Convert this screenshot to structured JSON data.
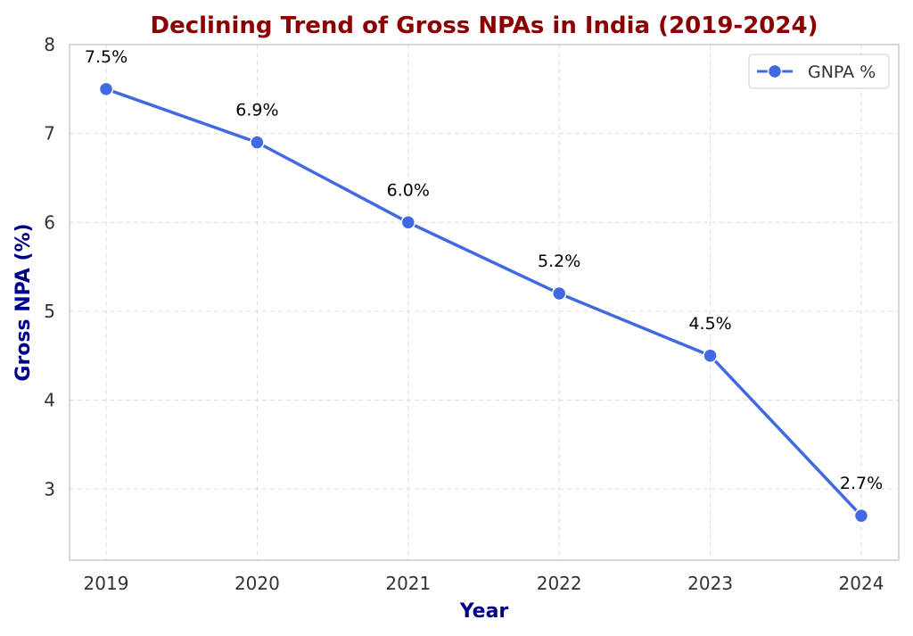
{
  "chart_data": {
    "type": "line",
    "title": "Declining Trend of Gross NPAs in India (2019-2024)",
    "xlabel": "Year",
    "ylabel": "Gross NPA (%)",
    "categories": [
      "2019",
      "2020",
      "2021",
      "2022",
      "2023",
      "2024"
    ],
    "series": [
      {
        "name": "GNPA %",
        "values": [
          7.5,
          6.9,
          6.0,
          5.2,
          4.5,
          2.7
        ],
        "labels": [
          "7.5%",
          "6.9%",
          "6.0%",
          "5.2%",
          "4.5%",
          "2.7%"
        ],
        "color": "#4169e1"
      }
    ],
    "yticks": [
      "3",
      "4",
      "5",
      "6",
      "7",
      "8"
    ],
    "ylim": [
      2.2,
      8.0
    ],
    "grid": true,
    "grid_style": "dashed",
    "legend_position": "top-right",
    "title_color": "#8b0000",
    "axis_label_color": "#00008b"
  }
}
